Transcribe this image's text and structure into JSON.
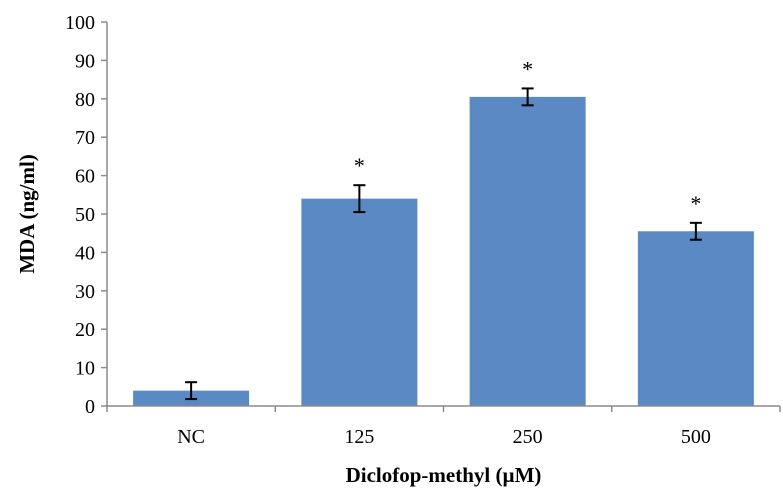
{
  "chart_data": {
    "type": "bar",
    "categories": [
      "NC",
      "125",
      "250",
      "500"
    ],
    "values": [
      4,
      54,
      80.5,
      45.5
    ],
    "errors": [
      2.2,
      3.5,
      2.2,
      2.2
    ],
    "significance": [
      "",
      "*",
      "*",
      "*"
    ],
    "xlabel": "Diclofop-methyl (µM)",
    "ylabel": "MDA (ng/ml)",
    "ylim": [
      0,
      100
    ],
    "yticks": [
      "0",
      "10",
      "20",
      "30",
      "40",
      "50",
      "60",
      "70",
      "80",
      "90",
      "100"
    ],
    "grid": false,
    "legend": "none",
    "bar_color": "#5a89c4",
    "axis_color": "#8c8c8c"
  }
}
